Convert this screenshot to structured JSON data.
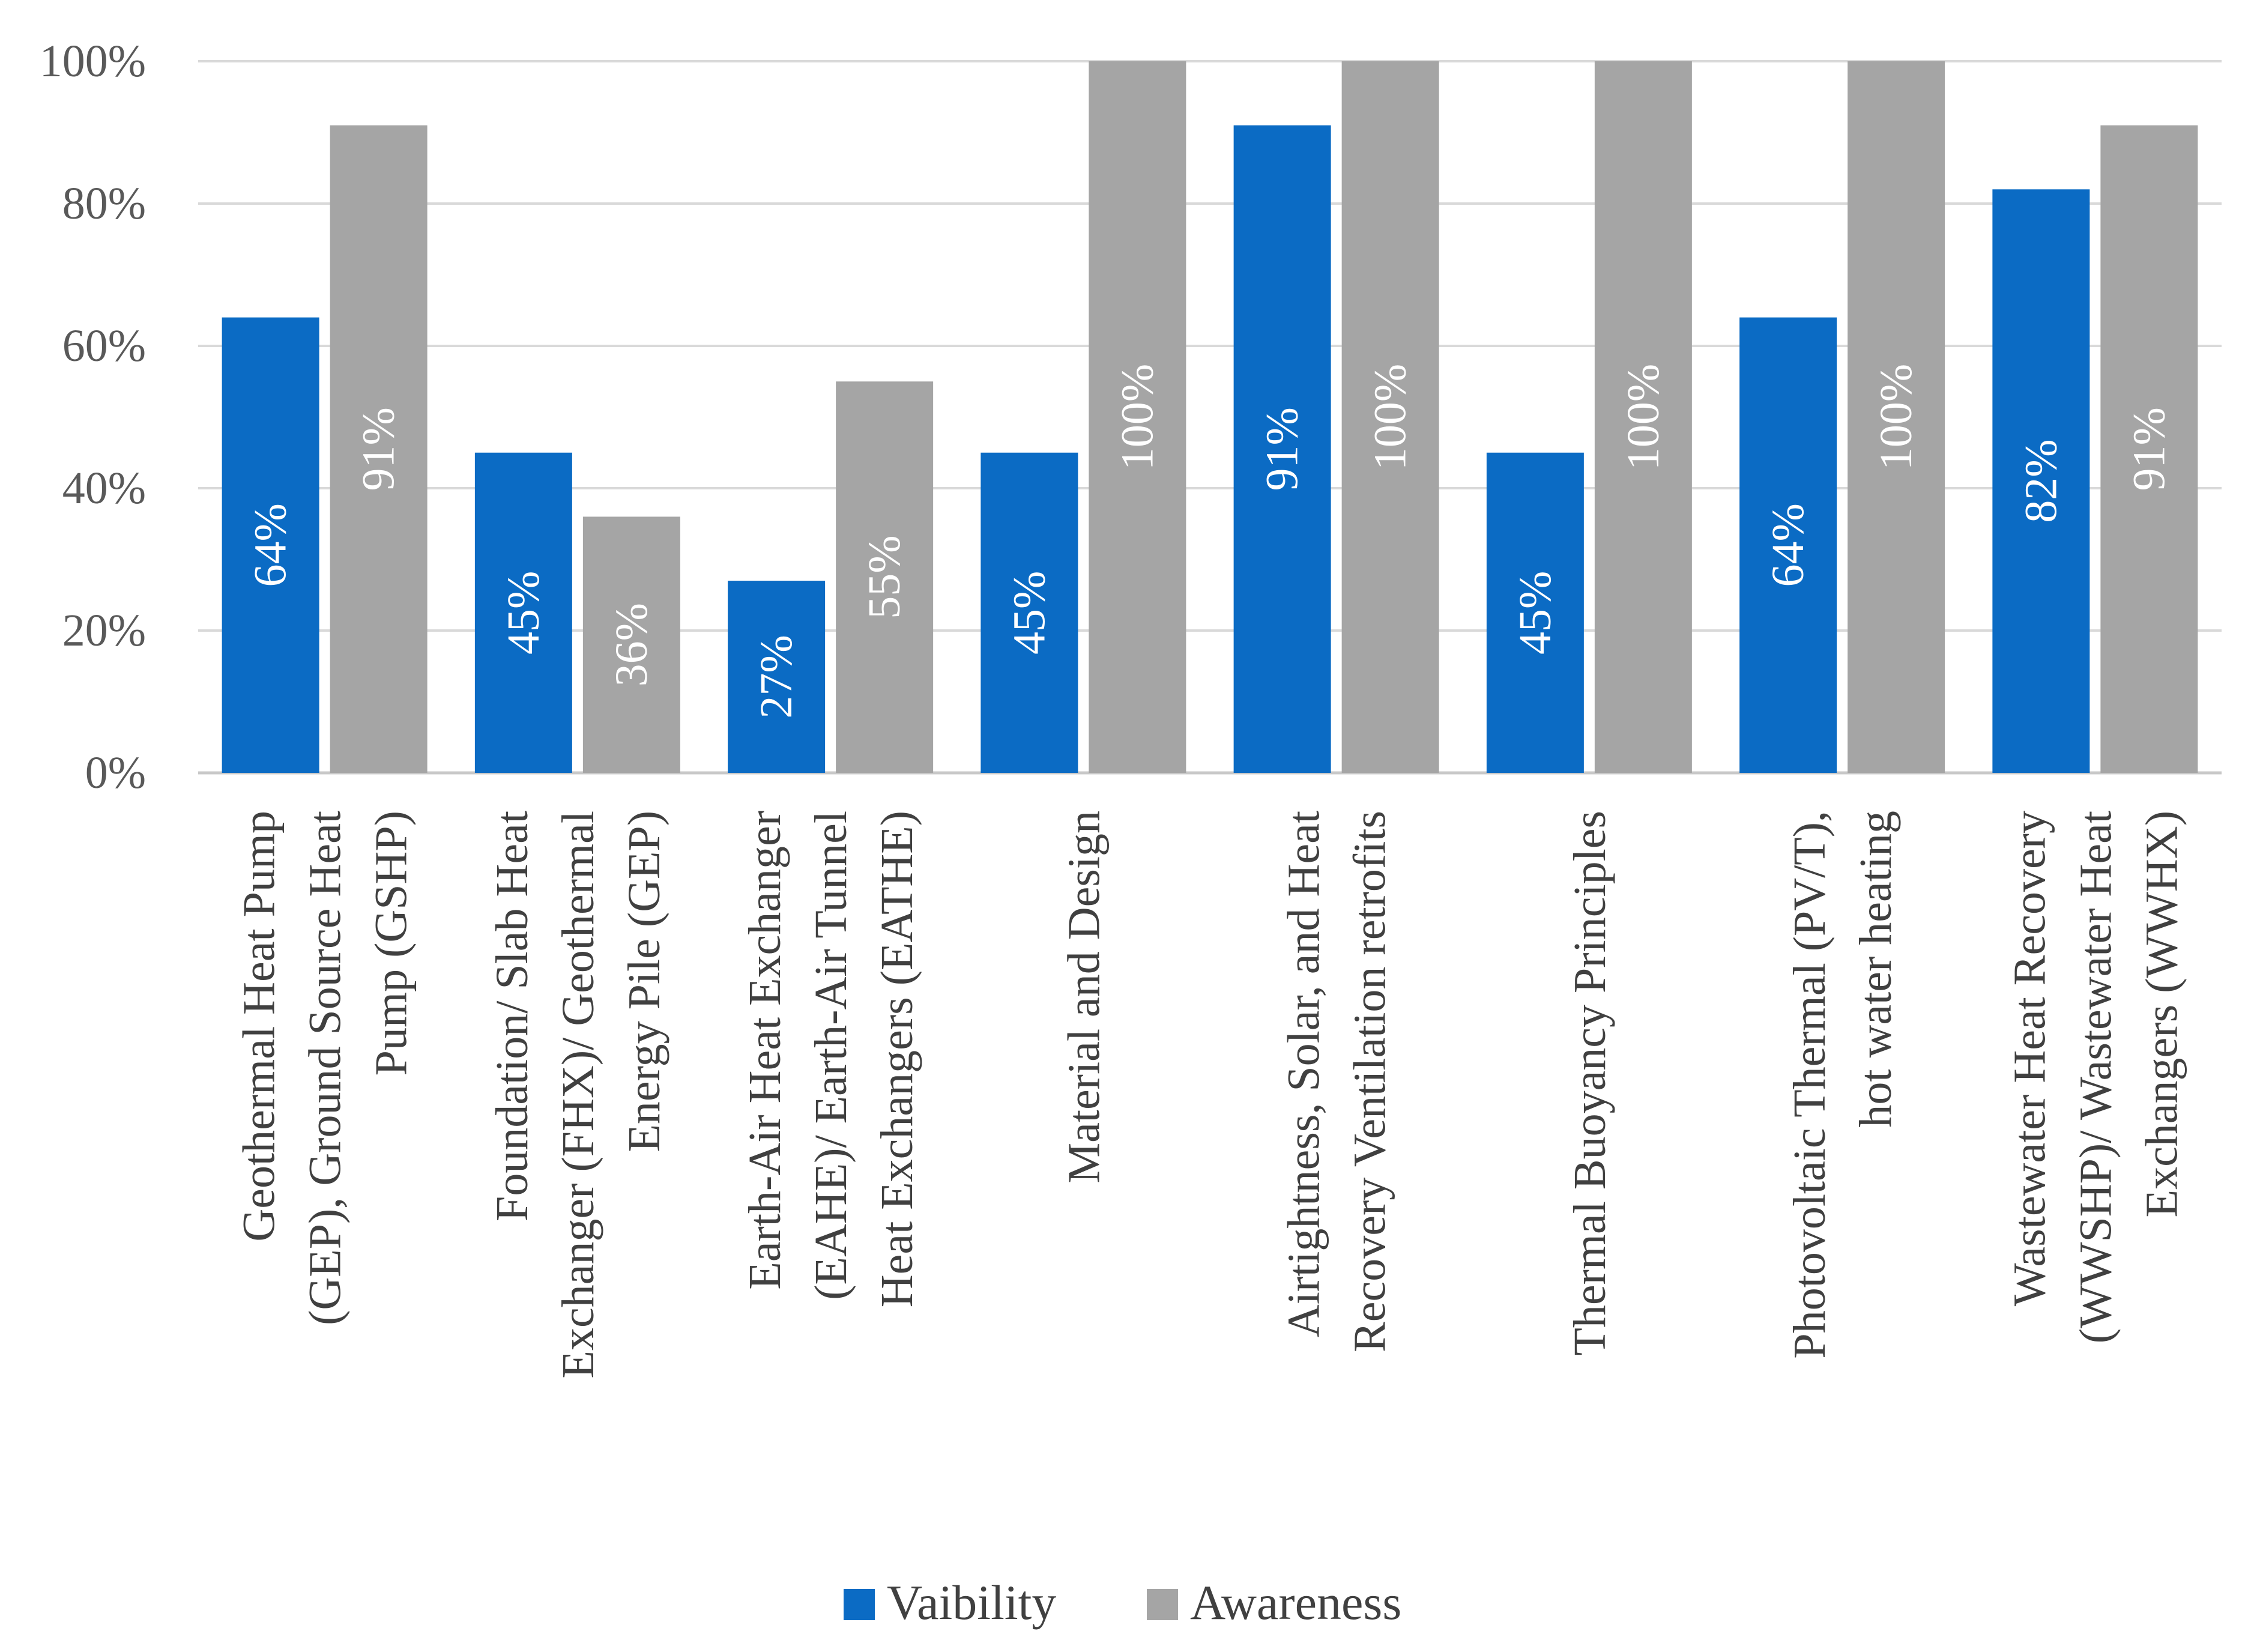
{
  "chart_data": {
    "type": "bar",
    "title": "",
    "xlabel": "",
    "ylabel": "",
    "ylim": [
      0,
      100
    ],
    "yticks": [
      "0%",
      "20%",
      "40%",
      "60%",
      "80%",
      "100%"
    ],
    "grid": true,
    "legend_position": "bottom",
    "categories": [
      [
        "Geothermal Heat Pump",
        "(GEP), Ground Source Heat",
        "Pump (GSHP)"
      ],
      [
        "Foundation/ Slab Heat",
        "Exchanger (FHX)/ Geothermal",
        "Energy Pile (GEP)"
      ],
      [
        "Earth-Air Heat Exchanger",
        "(EAHE)/ Earth-Air Tunnel",
        "Heat Exchangers (EATHE)"
      ],
      [
        "Material and Design"
      ],
      [
        "Airtightness, Solar, and Heat",
        "Recovery Ventilation retrofits"
      ],
      [
        "Thermal Buoyancy Principles"
      ],
      [
        "Photovoltaic Thermal (PV/T),",
        "hot water heating"
      ],
      [
        "Wastewater Heat Recovery",
        "(WWSHP)/ Wastewater Heat",
        "Exchangers (WWHX)"
      ]
    ],
    "series": [
      {
        "name": "Vaibility",
        "color": "#0B6BC4",
        "values": [
          64,
          45,
          27,
          45,
          91,
          45,
          64,
          82
        ],
        "labels": [
          "64%",
          "45%",
          "27%",
          "45%",
          "91%",
          "45%",
          "64%",
          "82%"
        ]
      },
      {
        "name": "Awareness",
        "color": "#A5A5A5",
        "values": [
          91,
          36,
          55,
          100,
          100,
          100,
          100,
          91
        ],
        "labels": [
          "91%",
          "36%",
          "55%",
          "100%",
          "100%",
          "100%",
          "100%",
          "91%"
        ]
      }
    ]
  }
}
